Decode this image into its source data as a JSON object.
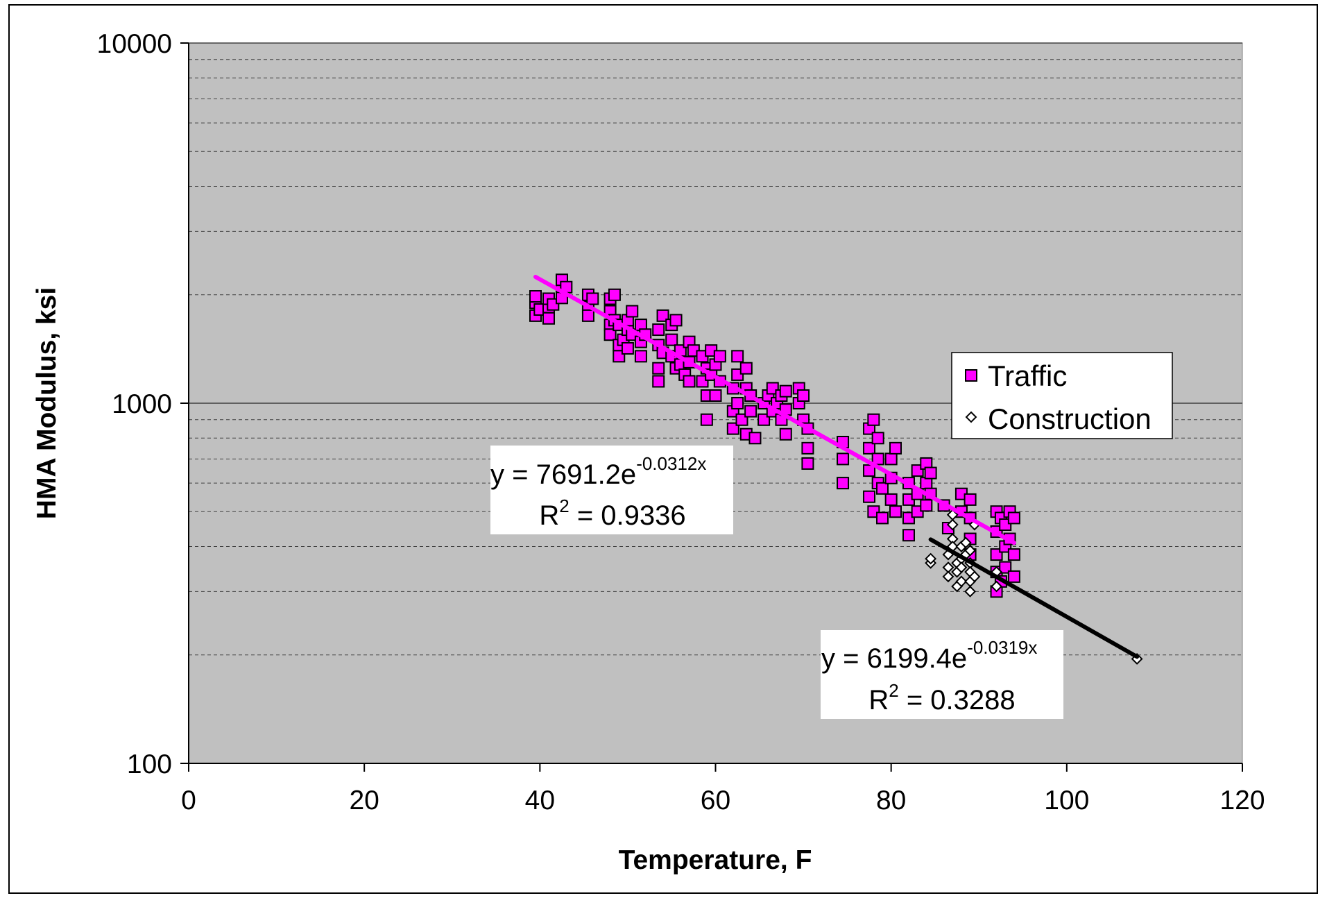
{
  "chart_data": {
    "type": "scatter",
    "title": "",
    "xlabel": "Temperature, F",
    "ylabel": "HMA Modulus, ksi",
    "xlim": [
      0,
      120
    ],
    "ylim": [
      100,
      10000
    ],
    "y_scale": "log",
    "x_ticks": [
      "0",
      "20",
      "40",
      "60",
      "80",
      "100",
      "120"
    ],
    "y_ticks": [
      "100",
      "1000",
      "10000"
    ],
    "grid": "horizontal dashed minor lines, solid major lines",
    "plot_background": "#c0c0c0",
    "legend_position": "right-middle",
    "series": [
      {
        "name": "Traffic",
        "marker": "square",
        "color": "#ff00ff",
        "points": [
          [
            39.5,
            1900
          ],
          [
            39.5,
            1750
          ],
          [
            39.5,
            1980
          ],
          [
            40,
            1820
          ],
          [
            41,
            1850
          ],
          [
            41,
            1720
          ],
          [
            41,
            1950
          ],
          [
            41.5,
            1880
          ],
          [
            42.5,
            2200
          ],
          [
            42.5,
            2050
          ],
          [
            42.5,
            1960
          ],
          [
            43,
            2100
          ],
          [
            45.5,
            2000
          ],
          [
            45.5,
            1850
          ],
          [
            45.5,
            1750
          ],
          [
            46,
            1950
          ],
          [
            48,
            1950
          ],
          [
            48,
            1800
          ],
          [
            48,
            1650
          ],
          [
            48,
            1550
          ],
          [
            48.5,
            2000
          ],
          [
            48.5,
            1700
          ],
          [
            49,
            1450
          ],
          [
            49,
            1650
          ],
          [
            49,
            1350
          ],
          [
            49.5,
            1500
          ],
          [
            50,
            1600
          ],
          [
            50,
            1700
          ],
          [
            50,
            1420
          ],
          [
            50.5,
            1550
          ],
          [
            50.5,
            1800
          ],
          [
            51.5,
            1650
          ],
          [
            51.5,
            1480
          ],
          [
            51.5,
            1350
          ],
          [
            52,
            1550
          ],
          [
            53.5,
            1600
          ],
          [
            53.5,
            1450
          ],
          [
            53.5,
            1250
          ],
          [
            53.5,
            1150
          ],
          [
            54,
            1750
          ],
          [
            54,
            1380
          ],
          [
            55,
            1650
          ],
          [
            55,
            1500
          ],
          [
            55,
            1350
          ],
          [
            55.5,
            1700
          ],
          [
            55.5,
            1250
          ],
          [
            56,
            1400
          ],
          [
            56,
            1280
          ],
          [
            56.5,
            1200
          ],
          [
            57,
            1480
          ],
          [
            57,
            1300
          ],
          [
            57,
            1150
          ],
          [
            57.5,
            1400
          ],
          [
            58.5,
            1350
          ],
          [
            58.5,
            1150
          ],
          [
            59,
            1050
          ],
          [
            59,
            900
          ],
          [
            59,
            1250
          ],
          [
            59.5,
            1400
          ],
          [
            59.5,
            1200
          ],
          [
            60,
            1050
          ],
          [
            60,
            1280
          ],
          [
            60.5,
            1150
          ],
          [
            60.5,
            1350
          ],
          [
            62,
            1100
          ],
          [
            62,
            950
          ],
          [
            62,
            850
          ],
          [
            62.5,
            1350
          ],
          [
            62.5,
            1200
          ],
          [
            62.5,
            1000
          ],
          [
            63,
            900
          ],
          [
            63.5,
            1100
          ],
          [
            63.5,
            1250
          ],
          [
            63.5,
            820
          ],
          [
            64,
            950
          ],
          [
            64,
            1050
          ],
          [
            64.5,
            800
          ],
          [
            65.5,
            1000
          ],
          [
            65.5,
            900
          ],
          [
            66,
            1050
          ],
          [
            66.5,
            1100
          ],
          [
            66.5,
            950
          ],
          [
            67,
            1000
          ],
          [
            67.5,
            900
          ],
          [
            67.5,
            1050
          ],
          [
            68,
            820
          ],
          [
            68,
            960
          ],
          [
            68,
            1080
          ],
          [
            69.5,
            1100
          ],
          [
            69.5,
            1000
          ],
          [
            70,
            1050
          ],
          [
            70,
            900
          ],
          [
            70.5,
            850
          ],
          [
            70.5,
            750
          ],
          [
            70.5,
            680
          ],
          [
            74.5,
            780
          ],
          [
            74.5,
            700
          ],
          [
            74.5,
            600
          ],
          [
            77.5,
            850
          ],
          [
            77.5,
            750
          ],
          [
            77.5,
            650
          ],
          [
            77.5,
            550
          ],
          [
            78,
            900
          ],
          [
            78,
            500
          ],
          [
            78.5,
            800
          ],
          [
            78.5,
            700
          ],
          [
            78.5,
            600
          ],
          [
            79,
            580
          ],
          [
            79,
            480
          ],
          [
            80,
            700
          ],
          [
            80,
            620
          ],
          [
            80,
            540
          ],
          [
            80.5,
            750
          ],
          [
            80.5,
            500
          ],
          [
            82,
            600
          ],
          [
            82,
            540
          ],
          [
            82,
            480
          ],
          [
            82,
            430
          ],
          [
            83,
            650
          ],
          [
            83,
            560
          ],
          [
            83,
            500
          ],
          [
            84,
            680
          ],
          [
            84,
            600
          ],
          [
            84,
            520
          ],
          [
            84.5,
            640
          ],
          [
            84.5,
            560
          ],
          [
            86,
            520
          ],
          [
            86.5,
            450
          ],
          [
            88,
            560
          ],
          [
            88,
            500
          ],
          [
            89,
            540
          ],
          [
            89,
            480
          ],
          [
            89,
            420
          ],
          [
            89,
            380
          ],
          [
            92,
            500
          ],
          [
            92,
            440
          ],
          [
            92,
            380
          ],
          [
            92,
            340
          ],
          [
            92,
            300
          ],
          [
            92.5,
            480
          ],
          [
            92.5,
            320
          ],
          [
            93,
            460
          ],
          [
            93,
            400
          ],
          [
            93,
            350
          ],
          [
            93.5,
            500
          ],
          [
            93.5,
            420
          ],
          [
            94,
            480
          ],
          [
            94,
            380
          ],
          [
            94,
            330
          ]
        ],
        "trendline": {
          "a": 7691.2,
          "b": -0.0312,
          "x_range": [
            39.5,
            94
          ],
          "color": "#ff00ff"
        },
        "equation": {
          "base": "y = 7691.2e",
          "exponent": "-0.0312x",
          "r2_label": "R",
          "r2_exp": "2",
          "r2_value": " = 0.9336"
        }
      },
      {
        "name": "Construction",
        "marker": "diamond",
        "color": "#ffffff",
        "points": [
          [
            84.5,
            360
          ],
          [
            84.5,
            370
          ],
          [
            86.5,
            380
          ],
          [
            86.5,
            350
          ],
          [
            86.5,
            330
          ],
          [
            87,
            420
          ],
          [
            87,
            460
          ],
          [
            87,
            490
          ],
          [
            87,
            400
          ],
          [
            87.5,
            360
          ],
          [
            87.5,
            340
          ],
          [
            87.5,
            310
          ],
          [
            88,
            400
          ],
          [
            88,
            370
          ],
          [
            88,
            350
          ],
          [
            88,
            320
          ],
          [
            88.5,
            410
          ],
          [
            88.5,
            380
          ],
          [
            89,
            360
          ],
          [
            89,
            340
          ],
          [
            89,
            320
          ],
          [
            89,
            300
          ],
          [
            89,
            390
          ],
          [
            89.5,
            460
          ],
          [
            89.5,
            330
          ],
          [
            92,
            340
          ],
          [
            92,
            310
          ],
          [
            108,
            195
          ]
        ],
        "trendline": {
          "a": 6199.4,
          "b": -0.0319,
          "x_range": [
            84.5,
            108
          ],
          "color": "#000000"
        },
        "equation": {
          "base": "y = 6199.4e",
          "exponent": "-0.0319x",
          "r2_label": "R",
          "r2_exp": "2",
          "r2_value": " = 0.3288"
        }
      }
    ]
  }
}
